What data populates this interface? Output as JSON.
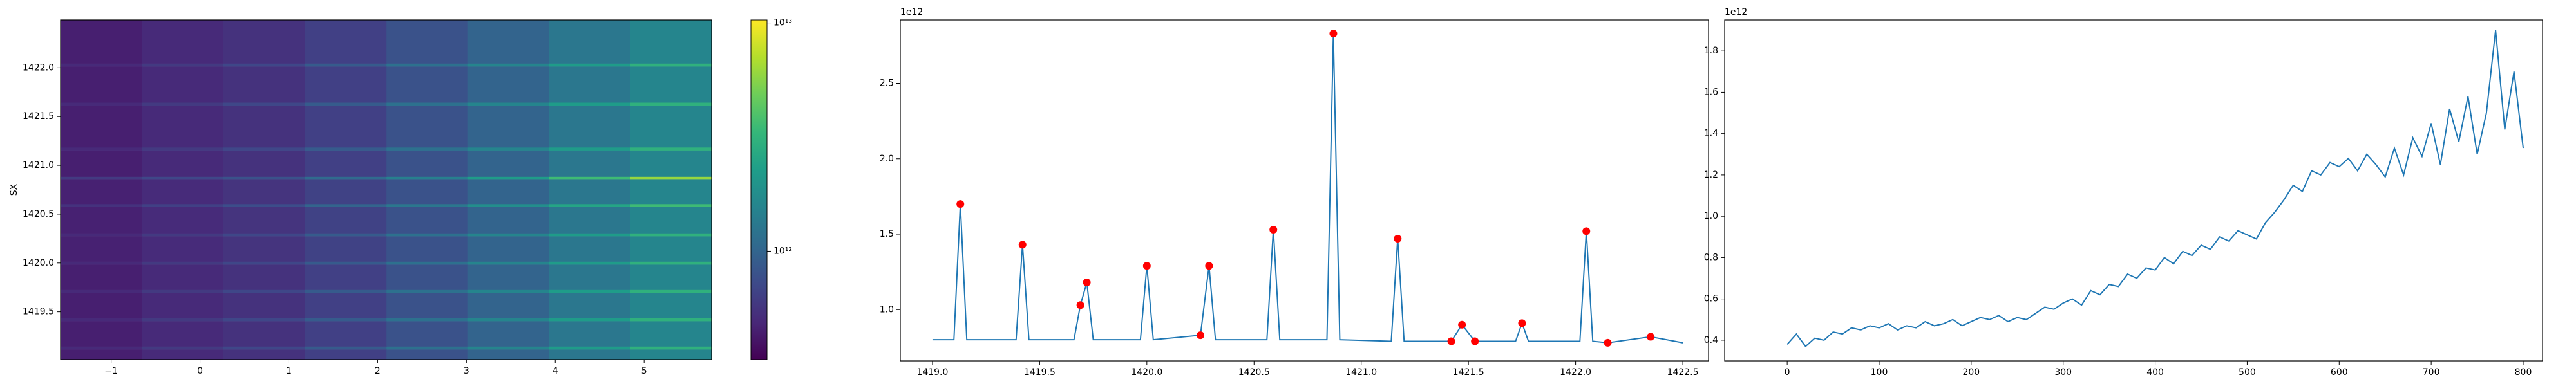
{
  "chart_data": [
    {
      "type": "heatmap",
      "ylabel": "SX",
      "x_edges": [
        -1.57,
        -0.65,
        0.26,
        1.18,
        2.1,
        3.01,
        3.93,
        4.84,
        5.76
      ],
      "y_edges": [
        1419.01,
        1419.115,
        1419.145,
        1419.405,
        1419.435,
        1419.695,
        1419.725,
        1419.985,
        1420.015,
        1420.275,
        1420.305,
        1420.575,
        1420.605,
        1420.855,
        1420.885,
        1421.155,
        1421.185,
        1421.615,
        1421.645,
        1422.015,
        1422.045,
        1422.49
      ],
      "z": [
        [
          450000000000.0,
          500000000000.0,
          550000000000.0,
          650000000000.0,
          800000000000.0,
          1000000000000.0,
          1300000000000.0,
          1600000000000.0
        ],
        [
          500000000000.0,
          600000000000.0,
          700000000000.0,
          900000000000.0,
          1200000000000.0,
          1600000000000.0,
          2200000000000.0,
          3000000000000.0
        ],
        [
          450000000000.0,
          500000000000.0,
          550000000000.0,
          650000000000.0,
          800000000000.0,
          1000000000000.0,
          1300000000000.0,
          1600000000000.0
        ],
        [
          500000000000.0,
          600000000000.0,
          700000000000.0,
          900000000000.0,
          1200000000000.0,
          1600000000000.0,
          2200000000000.0,
          3000000000000.0
        ],
        [
          450000000000.0,
          500000000000.0,
          550000000000.0,
          650000000000.0,
          800000000000.0,
          1000000000000.0,
          1300000000000.0,
          1600000000000.0
        ],
        [
          500000000000.0,
          600000000000.0,
          700000000000.0,
          900000000000.0,
          1200000000000.0,
          1600000000000.0,
          2200000000000.0,
          3000000000000.0
        ],
        [
          450000000000.0,
          500000000000.0,
          550000000000.0,
          650000000000.0,
          800000000000.0,
          1000000000000.0,
          1300000000000.0,
          1600000000000.0
        ],
        [
          500000000000.0,
          600000000000.0,
          700000000000.0,
          900000000000.0,
          1200000000000.0,
          1600000000000.0,
          2200000000000.0,
          3000000000000.0
        ],
        [
          460000000000.0,
          510000000000.0,
          560000000000.0,
          660000000000.0,
          800000000000.0,
          1000000000000.0,
          1300000000000.0,
          1600000000000.0
        ],
        [
          500000000000.0,
          600000000000.0,
          700000000000.0,
          900000000000.0,
          1200000000000.0,
          1600000000000.0,
          2200000000000.0,
          3000000000000.0
        ],
        [
          460000000000.0,
          510000000000.0,
          560000000000.0,
          660000000000.0,
          800000000000.0,
          1000000000000.0,
          1300000000000.0,
          1600000000000.0
        ],
        [
          550000000000.0,
          650000000000.0,
          750000000000.0,
          1000000000000.0,
          1300000000000.0,
          1800000000000.0,
          2500000000000.0,
          3500000000000.0
        ],
        [
          460000000000.0,
          510000000000.0,
          560000000000.0,
          660000000000.0,
          800000000000.0,
          1000000000000.0,
          1300000000000.0,
          1600000000000.0
        ],
        [
          600000000000.0,
          700000000000.0,
          800000000000.0,
          1100000000000.0,
          1500000000000.0,
          2200000000000.0,
          3500000000000.0,
          6000000000000.0
        ],
        [
          450000000000.0,
          500000000000.0,
          550000000000.0,
          650000000000.0,
          800000000000.0,
          1000000000000.0,
          1300000000000.0,
          1600000000000.0
        ],
        [
          500000000000.0,
          600000000000.0,
          700000000000.0,
          900000000000.0,
          1200000000000.0,
          1600000000000.0,
          2200000000000.0,
          3000000000000.0
        ],
        [
          450000000000.0,
          500000000000.0,
          550000000000.0,
          650000000000.0,
          800000000000.0,
          1000000000000.0,
          1300000000000.0,
          1600000000000.0
        ],
        [
          500000000000.0,
          600000000000.0,
          700000000000.0,
          900000000000.0,
          1200000000000.0,
          1600000000000.0,
          2200000000000.0,
          3000000000000.0
        ],
        [
          450000000000.0,
          500000000000.0,
          550000000000.0,
          650000000000.0,
          800000000000.0,
          1000000000000.0,
          1300000000000.0,
          1600000000000.0
        ],
        [
          500000000000.0,
          600000000000.0,
          700000000000.0,
          900000000000.0,
          1200000000000.0,
          1600000000000.0,
          2200000000000.0,
          3000000000000.0
        ],
        [
          450000000000.0,
          500000000000.0,
          550000000000.0,
          650000000000.0,
          800000000000.0,
          1000000000000.0,
          1300000000000.0,
          1600000000000.0
        ]
      ],
      "xlim": [
        -1.57,
        5.76
      ],
      "ylim": [
        1419.01,
        1422.49
      ],
      "xticks": [
        {
          "value": -1,
          "label": "−1"
        },
        0,
        1,
        2,
        3,
        4,
        5
      ],
      "yticks": [
        1419.5,
        {
          "value": 1420,
          "label": "1420.0"
        },
        1420.5,
        {
          "value": 1421,
          "label": "1421.0"
        },
        1421.5,
        {
          "value": 1422,
          "label": "1422.0"
        }
      ],
      "colorbar": {
        "scale": "log",
        "zlim": [
          335000000000.0,
          10300000000000.0
        ],
        "ticks": [
          {
            "value": 1000000000000.0,
            "label": "10¹²"
          },
          {
            "value": 10000000000000.0,
            "label": "10¹³"
          }
        ]
      }
    },
    {
      "type": "line",
      "offset_label": "1e12",
      "series": [
        {
          "style": "line",
          "color": "#1f77b4",
          "x": [
            1419.0,
            1419.1,
            1419.13,
            1419.16,
            1419.39,
            1419.42,
            1419.45,
            1419.66,
            1419.69,
            1419.72,
            1419.75,
            1419.97,
            1420.0,
            1420.03,
            1420.25,
            1420.29,
            1420.32,
            1420.56,
            1420.59,
            1420.62,
            1420.84,
            1420.87,
            1420.9,
            1421.14,
            1421.17,
            1421.2,
            1421.42,
            1421.47,
            1421.53,
            1421.72,
            1421.75,
            1421.78,
            1422.02,
            1422.05,
            1422.08,
            1422.15,
            1422.35,
            1422.5
          ],
          "values": [
            0.8,
            0.8,
            1.7,
            0.8,
            0.8,
            1.43,
            0.8,
            0.8,
            1.03,
            1.18,
            0.8,
            0.8,
            1.29,
            0.8,
            0.83,
            1.29,
            0.8,
            0.8,
            1.53,
            0.8,
            0.8,
            2.83,
            0.8,
            0.79,
            1.47,
            0.79,
            0.79,
            0.9,
            0.79,
            0.79,
            0.91,
            0.79,
            0.79,
            1.52,
            0.79,
            0.78,
            0.82,
            0.78
          ]
        },
        {
          "style": "points",
          "color": "#ff0000",
          "x": [
            1419.13,
            1419.42,
            1419.69,
            1419.72,
            1420.0,
            1420.25,
            1420.29,
            1420.59,
            1420.87,
            1421.17,
            1421.42,
            1421.47,
            1421.53,
            1421.75,
            1422.05,
            1422.15,
            1422.35
          ],
          "values": [
            1.7,
            1.43,
            1.03,
            1.18,
            1.29,
            0.83,
            1.29,
            1.53,
            2.83,
            1.47,
            0.79,
            0.9,
            0.79,
            0.91,
            1.52,
            0.78,
            0.82
          ]
        }
      ],
      "xlim": [
        1418.85,
        1422.62
      ],
      "ylim": [
        0.66,
        2.92
      ],
      "xticks": [
        {
          "value": 1419,
          "label": "1419.0"
        },
        1419.5,
        {
          "value": 1420,
          "label": "1420.0"
        },
        1420.5,
        {
          "value": 1421,
          "label": "1421.0"
        },
        1421.5,
        {
          "value": 1422,
          "label": "1422.0"
        },
        1422.5
      ],
      "yticks": [
        {
          "value": 1,
          "label": "1.0"
        },
        1.5,
        {
          "value": 2,
          "label": "2.0"
        },
        2.5
      ]
    },
    {
      "type": "line",
      "offset_label": "1e12",
      "series": [
        {
          "style": "line",
          "color": "#1f77b4",
          "x": [
            0,
            10,
            20,
            30,
            40,
            50,
            60,
            70,
            80,
            90,
            100,
            110,
            120,
            130,
            140,
            150,
            160,
            170,
            180,
            190,
            200,
            210,
            220,
            230,
            240,
            250,
            260,
            270,
            280,
            290,
            300,
            310,
            320,
            330,
            340,
            350,
            360,
            370,
            380,
            390,
            400,
            410,
            420,
            430,
            440,
            450,
            460,
            470,
            480,
            490,
            500,
            510,
            520,
            530,
            540,
            550,
            560,
            570,
            580,
            590,
            600,
            610,
            620,
            630,
            640,
            650,
            660,
            670,
            680,
            690,
            700,
            710,
            720,
            730,
            740,
            750,
            760,
            770,
            780,
            790,
            800
          ],
          "values": [
            0.38,
            0.43,
            0.37,
            0.41,
            0.4,
            0.44,
            0.43,
            0.46,
            0.45,
            0.47,
            0.46,
            0.48,
            0.45,
            0.47,
            0.46,
            0.49,
            0.47,
            0.48,
            0.5,
            0.47,
            0.49,
            0.51,
            0.5,
            0.52,
            0.49,
            0.51,
            0.5,
            0.53,
            0.56,
            0.55,
            0.58,
            0.6,
            0.57,
            0.64,
            0.62,
            0.67,
            0.66,
            0.72,
            0.7,
            0.75,
            0.74,
            0.8,
            0.77,
            0.83,
            0.81,
            0.86,
            0.84,
            0.9,
            0.88,
            0.93,
            0.91,
            0.89,
            0.97,
            1.02,
            1.08,
            1.15,
            1.12,
            1.22,
            1.2,
            1.26,
            1.24,
            1.28,
            1.22,
            1.3,
            1.25,
            1.19,
            1.33,
            1.2,
            1.38,
            1.29,
            1.45,
            1.25,
            1.52,
            1.36,
            1.58,
            1.3,
            1.5,
            1.9,
            1.42,
            1.7,
            1.33
          ]
        }
      ],
      "xlim": [
        -68,
        821
      ],
      "ylim": [
        0.3,
        1.95
      ],
      "xticks": [
        0,
        100,
        200,
        300,
        400,
        500,
        600,
        700,
        800
      ],
      "yticks": [
        0.4,
        0.6,
        0.8,
        {
          "value": 1,
          "label": "1.0"
        },
        1.2,
        1.4,
        1.6,
        1.8
      ]
    }
  ]
}
